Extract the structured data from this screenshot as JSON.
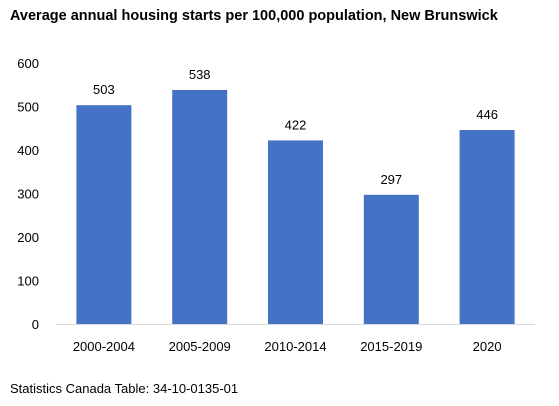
{
  "chart_data": {
    "type": "bar",
    "title": "Average annual housing starts per 100,000 population, New Brunswick",
    "categories": [
      "2000-2004",
      "2005-2009",
      "2010-2014",
      "2015-2019",
      "2020"
    ],
    "values": [
      503,
      538,
      422,
      297,
      446
    ],
    "data_labels": [
      "503",
      "538",
      "422",
      "297",
      "446"
    ],
    "y_ticks": [
      "0",
      "100",
      "200",
      "300",
      "400",
      "500",
      "600"
    ],
    "ylim": [
      0,
      600
    ],
    "grid": false,
    "legend": "none",
    "bar_color": "#4472C4"
  },
  "source": "Statistics Canada Table: 34-10-0135-01"
}
